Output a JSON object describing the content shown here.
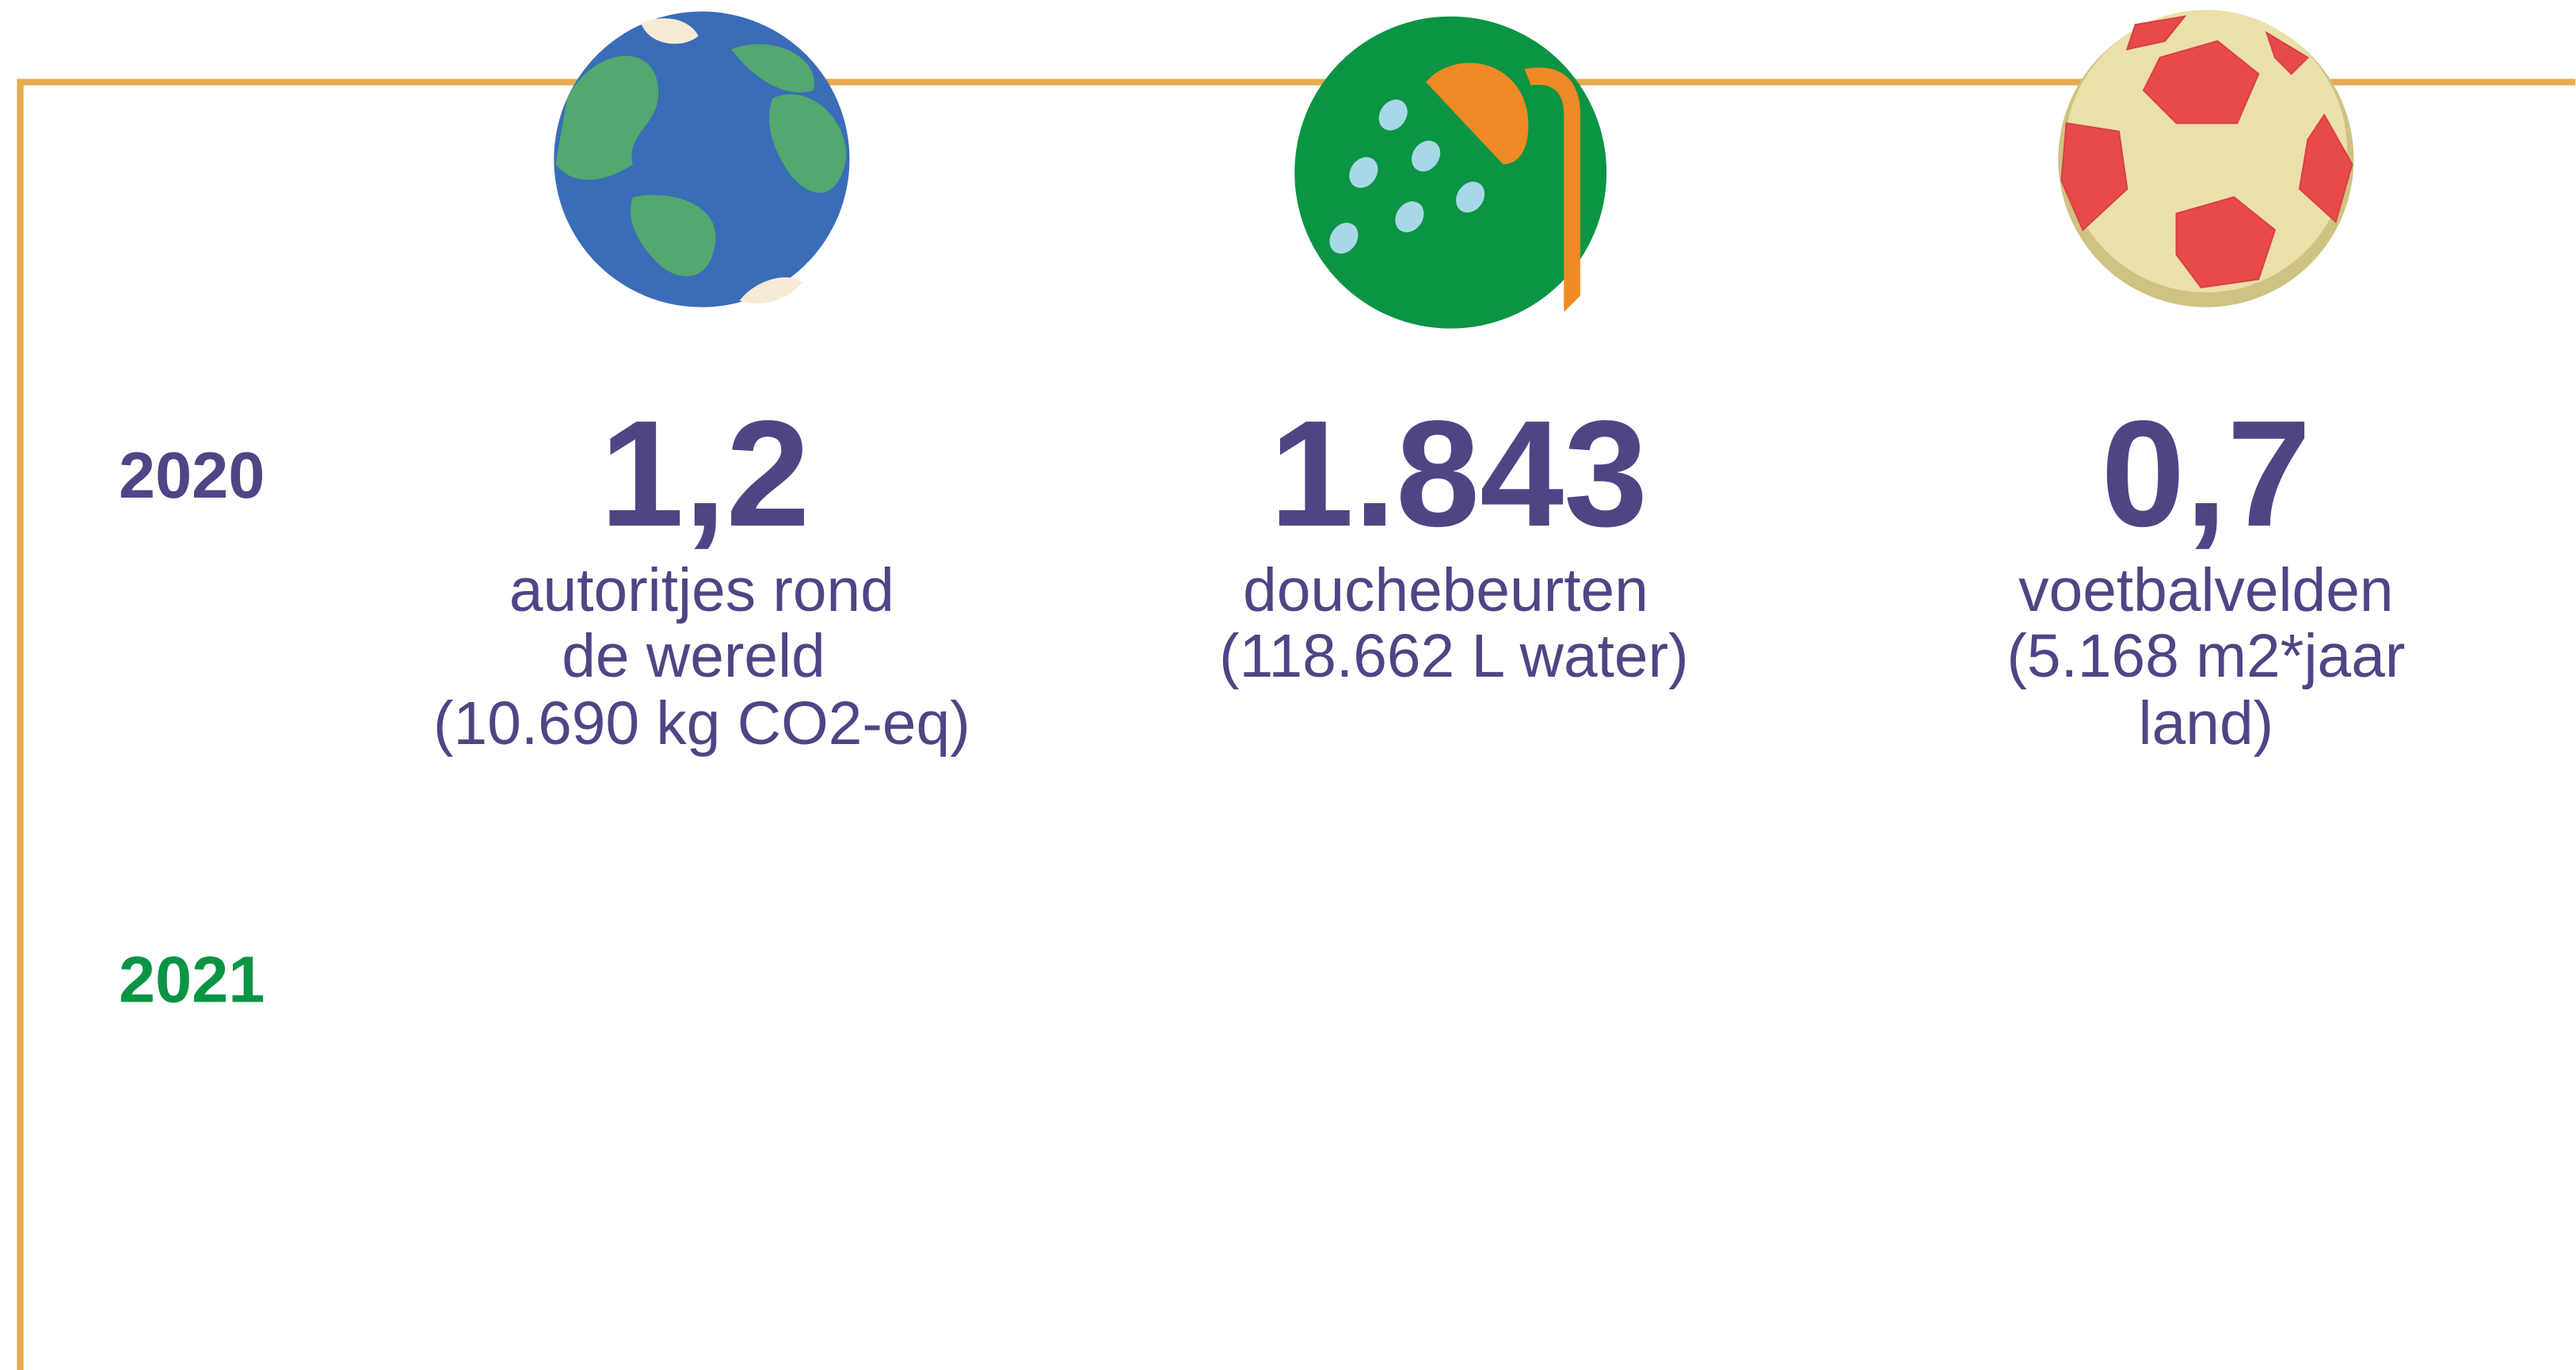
{
  "years": [
    "2020",
    "2021"
  ],
  "items": [
    {
      "value": "1,2",
      "lines": [
        "autoritjes rond",
        "de wereld",
        "(10.690 kg CO2-eq)"
      ]
    },
    {
      "value": "1.843",
      "lines": [
        "douchebeurten",
        "(118.662 L water)"
      ]
    },
    {
      "value": "0,7",
      "lines": [
        "voetbalvelden",
        "(5.168 m2*jaar",
        "land)"
      ]
    }
  ]
}
